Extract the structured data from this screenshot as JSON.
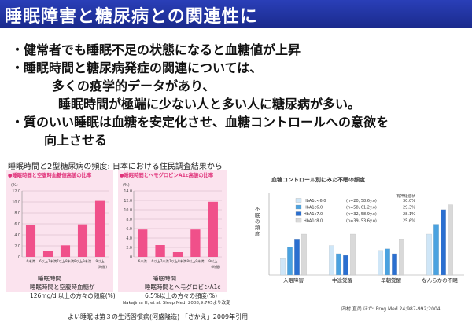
{
  "title": "睡眠障害と糖尿病との関連性に",
  "bullets": [
    "・健常者でも睡眠不足の状態になると血糖値が上昇",
    "・睡眠時間と糖尿病発症の関連については、",
    "多くの疫学的データがあり、",
    "睡眠時間が極端に少ない人と多い人に糖尿病が多い。",
    "・質のいい睡眠は血糖を安定化させ、血糖コントロールへの意欲を",
    "向上させる"
  ],
  "section_title": "睡眠時間と2型糖尿病の頻度: 日本における住民調査結果から",
  "colors": {
    "title_bar": "#1e2f9e",
    "left_bar": "#f0508a",
    "panel_bg": "#fbe3ee",
    "right_series": [
      "#cfe6f7",
      "#4aa2e0",
      "#2a6fd0",
      "#d9d9d9"
    ]
  },
  "chart_data": [
    {
      "type": "bar",
      "title": "●睡眠時間と空腹時血糖値高値の比率",
      "ylabel": "(%)",
      "ylim": [
        0,
        12
      ],
      "yticks": [
        "0",
        "2.0",
        "4.0",
        "6.0",
        "8.0",
        "10.0",
        "12.0"
      ],
      "categories": [
        "6未満",
        "6以上7未満",
        "7以上8未満",
        "8以上9未満",
        "9以上"
      ],
      "cat_suffix": "(時間)",
      "values": [
        5.8,
        1.0,
        2.1,
        5.9,
        10.2
      ],
      "xlabel": "睡眠時間",
      "caption": [
        "睡眠時間と空腹時血糖が",
        "126mg/dl以上の方々の頻度(%)"
      ]
    },
    {
      "type": "bar",
      "title": "●睡眠時間とヘモグロビンA1c高値の比率",
      "ylabel": "(%)",
      "ylim": [
        0,
        14
      ],
      "yticks": [
        "0",
        "2.0",
        "4.0",
        "6.0",
        "8.0",
        "10.0",
        "12.0",
        "14.0"
      ],
      "categories": [
        "6未満",
        "6以上7未満",
        "7以上8未満",
        "8以上9未満",
        "9以上"
      ],
      "cat_suffix": "(時間)",
      "values": [
        5.8,
        2.5,
        1.0,
        5.8,
        11.7
      ],
      "xlabel": "睡眠時間",
      "caption": [
        "睡眠時間とヘモグロビンA1c",
        "6.5%以上の方々の頻度(%)"
      ],
      "citation": "Nakajima H, et al. Sleep Med. 2008;9:745より改変"
    },
    {
      "type": "bar",
      "title": "血糖コントロール別にみた不眠の頻度",
      "ylabel": "不眠の頻度",
      "ylim": [
        0,
        50
      ],
      "categories": [
        "入眠障害",
        "中途覚醒",
        "早朝覚醒",
        "なんらかの不眠"
      ],
      "legend_header": "有神経症状",
      "series": [
        {
          "name": "HbA1c<6.0",
          "n": "(n=20, 58.6y.o)",
          "pct": "30.0%",
          "values": [
            10,
            18,
            15,
            25
          ]
        },
        {
          "name": "HbA1c6.0",
          "n": "(n=58, 61.2y.o)",
          "pct": "29.3%",
          "values": [
            17,
            13,
            16,
            31
          ]
        },
        {
          "name": "HbA1c7.0",
          "n": "(n=32, 58.9y.o)",
          "pct": "28.1%",
          "values": [
            22,
            12,
            13,
            40
          ]
        },
        {
          "name": "HbA1c8.0",
          "n": "(n=39, 53.6y.o)",
          "pct": "25.6%",
          "values": [
            25,
            25,
            22,
            43
          ]
        }
      ],
      "series_prefix": [
        "",
        "≤",
        "≤",
        "≤"
      ],
      "series_suffix": [
        "",
        "<7.0",
        "<8.0",
        ""
      ],
      "citation": "内村 直尚 ほか: Prog Med 24;987-992;2004"
    }
  ],
  "footer": "よい睡眠は第３の生活習慣病(河盛隆造) 「さかえ」2009年引用"
}
